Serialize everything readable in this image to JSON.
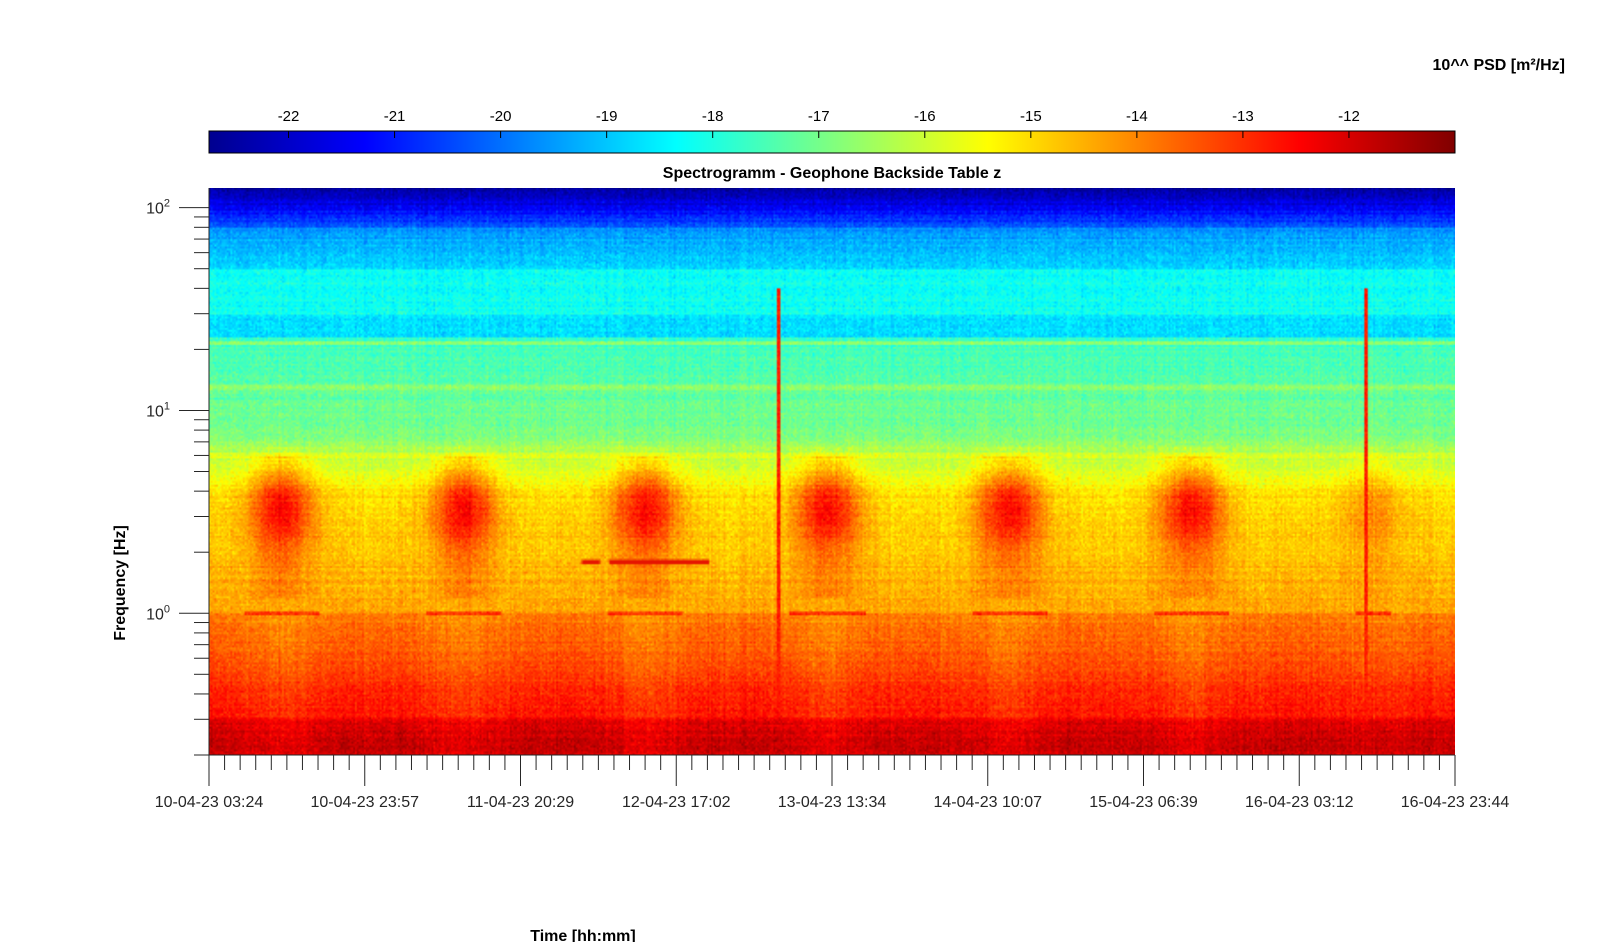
{
  "chart_data": {
    "type": "heatmap",
    "title": "Spectrogramm - Geophone Backside Table z",
    "xlabel": "Time [hh:mm]",
    "ylabel": "Frequency [Hz]",
    "x_ticks": [
      "10-04-23 03:24",
      "10-04-23 23:57",
      "11-04-23 20:29",
      "12-04-23 17:02",
      "13-04-23 13:34",
      "14-04-23 10:07",
      "15-04-23 06:39",
      "16-04-23 03:12",
      "16-04-23 23:44"
    ],
    "y_scale": "log",
    "y_ticks": [
      {
        "value": 100,
        "base": "10",
        "exp": "2"
      },
      {
        "value": 10,
        "base": "10",
        "exp": "1"
      },
      {
        "value": 1,
        "base": "10",
        "exp": "0"
      }
    ],
    "ylim": [
      0.2,
      125
    ],
    "colorbar": {
      "label": "10^^ PSD [m²/Hz]",
      "ticks": [
        "-22",
        "-21",
        "-20",
        "-19",
        "-18",
        "-17",
        "-16",
        "-15",
        "-14",
        "-13",
        "-12"
      ],
      "range": [
        -22.75,
        -11
      ],
      "colormap": "jet",
      "location": "top"
    },
    "features": {
      "low_freq_floor_log10_psd": -12.6,
      "daily_activity_band_hz": [
        2,
        6
      ],
      "line_1hz": true,
      "broadband_spikes_day_fraction": [
        3.13,
        6.36
      ]
    }
  }
}
